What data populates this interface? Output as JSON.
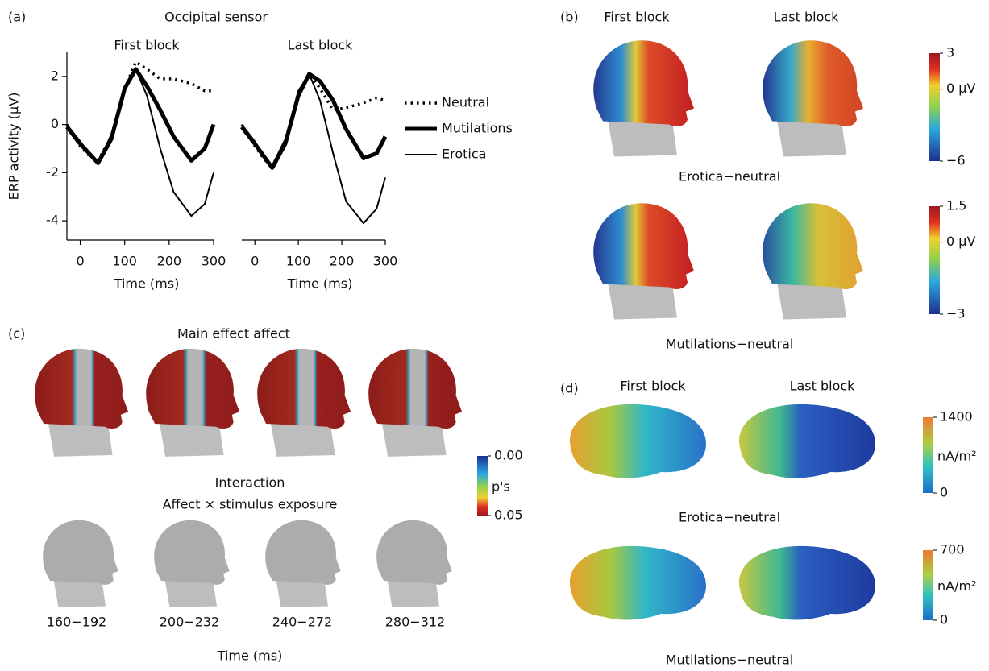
{
  "chart_data": [
    {
      "type": "line",
      "title": "First block",
      "xlabel": "Time (ms)",
      "ylabel": "ERP activity (μV)",
      "legend": "right",
      "x": [
        -30,
        0,
        20,
        40,
        70,
        100,
        125,
        150,
        180,
        210,
        250,
        280,
        300
      ],
      "series": [
        {
          "name": "Neutral",
          "color": "#000000",
          "style": "dotted",
          "values": [
            0,
            -0.9,
            -1.3,
            -1.5,
            -0.5,
            1.5,
            2.6,
            2.3,
            1.9,
            1.9,
            1.7,
            1.4,
            1.4
          ]
        },
        {
          "name": "Mutilations",
          "color": "#000000",
          "style": "thick",
          "values": [
            -0.1,
            -0.8,
            -1.2,
            -1.6,
            -0.6,
            1.5,
            2.3,
            1.6,
            0.6,
            -0.5,
            -1.5,
            -1.0,
            0
          ]
        },
        {
          "name": "Erotica",
          "color": "#000000",
          "style": "thin",
          "values": [
            0,
            -0.7,
            -1.2,
            -1.6,
            -0.4,
            1.6,
            2.3,
            1.2,
            -1.0,
            -2.8,
            -3.8,
            -3.3,
            -2.0
          ]
        }
      ],
      "xlim": [
        -30,
        300
      ],
      "xticks": [
        0,
        100,
        200,
        300
      ],
      "ylim": [
        -4.8,
        3
      ],
      "yticks": [
        -4,
        -2,
        0,
        2
      ]
    },
    {
      "type": "line",
      "title": "Last block",
      "xlabel": "Time (ms)",
      "x": [
        -30,
        0,
        20,
        40,
        70,
        100,
        125,
        150,
        180,
        210,
        250,
        280,
        300
      ],
      "series": [
        {
          "color": "#000000",
          "style": "dotted",
          "values": [
            0,
            -0.9,
            -1.4,
            -1.8,
            -0.8,
            1.3,
            2.1,
            1.5,
            0.6,
            0.7,
            0.9,
            1.1,
            1.0
          ]
        },
        {
          "color": "#000000",
          "style": "thick",
          "values": [
            -0.1,
            -0.8,
            -1.3,
            -1.8,
            -0.8,
            1.2,
            2.1,
            1.8,
            1.0,
            -0.2,
            -1.4,
            -1.2,
            -0.5
          ]
        },
        {
          "color": "#000000",
          "style": "thin",
          "values": [
            0,
            -0.7,
            -1.3,
            -1.7,
            -0.6,
            1.4,
            2.1,
            1.0,
            -1.2,
            -3.2,
            -4.1,
            -3.5,
            -2.2
          ]
        }
      ],
      "xlim": [
        -30,
        300
      ],
      "xticks": [
        0,
        100,
        200,
        300
      ],
      "ylim": [
        -4.8,
        3
      ]
    }
  ],
  "panel_a": {
    "label": "(a)",
    "title": "Occipital sensor"
  },
  "panel_b": {
    "label": "(b)",
    "columns": [
      "First block",
      "Last block"
    ],
    "rows": [
      {
        "caption": "Erotica−neutral",
        "colorbar": {
          "lim": [
            -6,
            3
          ],
          "ticks": [
            3,
            {
              "value": 0,
              "label": "0 μV"
            },
            {
              "value": -6,
              "label": "−6"
            }
          ]
        }
      },
      {
        "caption": "Mutilations−neutral",
        "colorbar": {
          "lim": [
            -3,
            1.5
          ],
          "ticks": [
            1.5,
            {
              "value": 0,
              "label": "0 μV"
            },
            {
              "value": -3,
              "label": "−3"
            }
          ]
        }
      }
    ]
  },
  "panel_c": {
    "label": "(c)",
    "title": "Main effect affect",
    "subtitle": [
      "Interaction",
      "Affect × stimulus exposure"
    ],
    "windows": [
      "160−192",
      "200−232",
      "240−272",
      "280−312"
    ],
    "xlabel": "Time (ms)",
    "colorbar": {
      "lim": [
        0,
        0.05
      ],
      "reversed": true,
      "label": "p's",
      "ticks": [
        {
          "value": 0,
          "label": "0.00"
        },
        {
          "value": 0.05,
          "label": "0.05"
        }
      ]
    }
  },
  "panel_d": {
    "label": "(d)",
    "columns": [
      "First block",
      "Last block"
    ],
    "rows": [
      {
        "caption": "Erotica−neutral",
        "colorbar": {
          "lim": [
            0,
            1400
          ],
          "label": "nA/m²",
          "ticks": [
            1400,
            0
          ]
        }
      },
      {
        "caption": "Mutilations−neutral",
        "colorbar": {
          "lim": [
            0,
            700
          ],
          "label": "nA/m²",
          "ticks": [
            700,
            0
          ]
        }
      }
    ]
  }
}
